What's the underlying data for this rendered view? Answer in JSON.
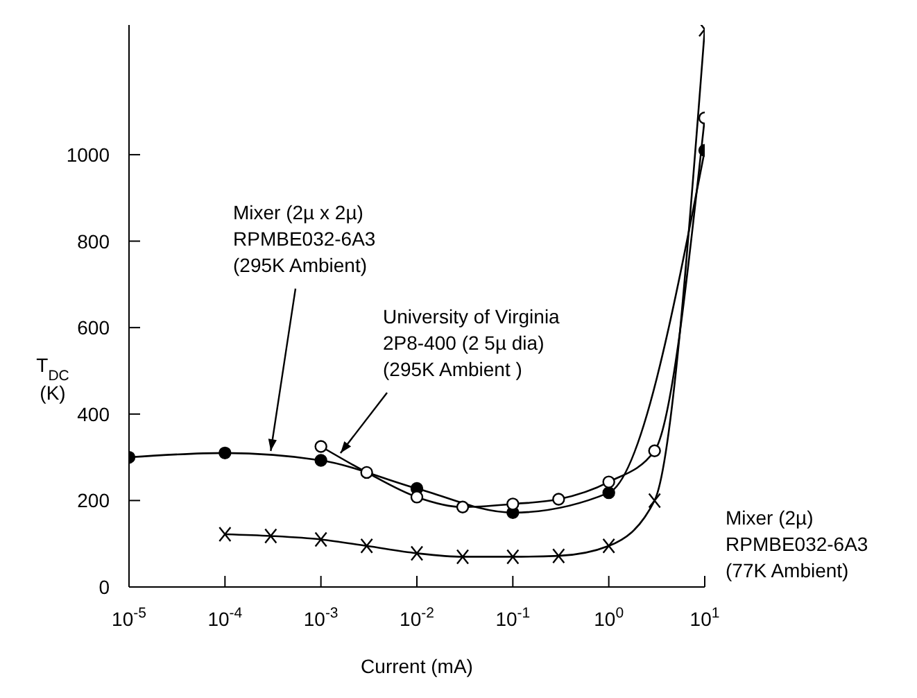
{
  "chart_data": {
    "type": "line",
    "xlabel": "Current (mA)",
    "ylabel": "T$_{DC}$\n(K)",
    "log": "x",
    "grid": false,
    "legend": false,
    "xlim": [
      1e-05,
      10
    ],
    "xticks": [
      {
        "value": 1e-05,
        "label": "10$^{-5}$"
      },
      {
        "value": 0.0001,
        "label": "10$^{-4}$"
      },
      {
        "value": 0.001,
        "label": "10$^{-3}$"
      },
      {
        "value": 0.01,
        "label": "10$^{-2}$"
      },
      {
        "value": 0.1,
        "label": "10$^{-1}$"
      },
      {
        "value": 1,
        "label": "10$^{0}$"
      },
      {
        "value": 10,
        "label": "10$^{1}$"
      }
    ],
    "ylim": [
      0,
      1300
    ],
    "yticks": [
      0,
      200,
      400,
      600,
      800,
      1000
    ],
    "series": [
      {
        "color": "#000000",
        "marker": "circle",
        "x": [
          1e-05,
          0.0001,
          0.001,
          0.01,
          0.1,
          1,
          10
        ],
        "values": [
          300,
          310,
          293,
          228,
          172,
          218,
          1010
        ]
      },
      {
        "color": "#000000",
        "marker": "circle",
        "x": [
          0.001,
          0.003,
          0.01,
          0.03,
          0.1,
          0.3,
          1,
          3,
          10
        ],
        "values": [
          325,
          265,
          208,
          185,
          192,
          203,
          243,
          315,
          1085
        ]
      },
      {
        "color": "#000000",
        "marker": "cross",
        "x": [
          0.0001,
          0.0003,
          0.001,
          0.003,
          0.01,
          0.03,
          0.1,
          0.3,
          1,
          3,
          10
        ],
        "values": [
          122,
          118,
          110,
          95,
          78,
          70,
          70,
          72,
          95,
          200,
          1290
        ]
      }
    ],
    "annotations": [
      {
        "text": "Mixer (2µ x 2µ)\nRPMBE032-6A3\n(295K Ambient)",
        "x": 0.0003,
        "y": 305
      },
      {
        "text": "University of Virginia\n2P8-400 (2 5µ dia)\n(295K Ambient )",
        "x": 0.0016,
        "y": 300
      },
      "Mixer (2µ)\nRPMBE032-6A3\n(77K Ambient)"
    ]
  }
}
